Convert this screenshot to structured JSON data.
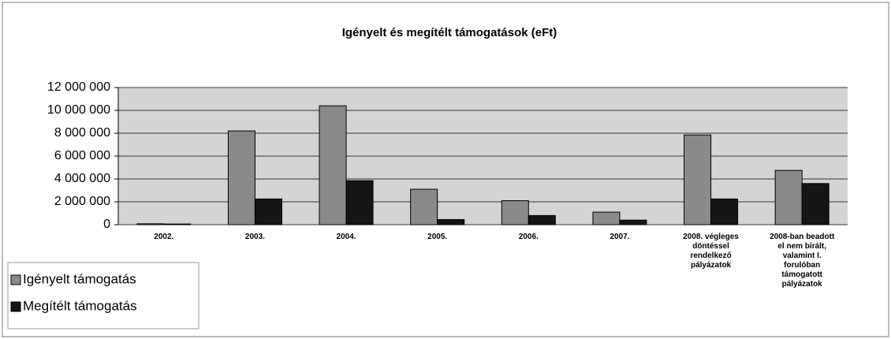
{
  "chart_data": {
    "type": "bar",
    "title": "Igényelt és megítélt támogatások (eFt)",
    "categories": [
      "2002.",
      "2003.",
      "2004.",
      "2005.",
      "2006.",
      "2007.",
      "2008. végleges döntéssel rendelkező pályázatok",
      "2008-ban beadott el nem bírált, valamint I. forulóban támogatott pályázatok"
    ],
    "series": [
      {
        "name": "Igényelt támogatás",
        "color": "#8a8a8a",
        "values": [
          80000,
          8200000,
          10400000,
          3100000,
          2100000,
          1100000,
          7850000,
          4750000
        ]
      },
      {
        "name": "Megítélt támogatás",
        "color": "#151515",
        "values": [
          60000,
          2250000,
          3850000,
          450000,
          800000,
          400000,
          2250000,
          3600000
        ]
      }
    ],
    "ylim": [
      0,
      12000000
    ],
    "yticks": [
      0,
      {
        "value": 2000000,
        "label": "2 000 000"
      },
      {
        "value": 4000000,
        "label": "4 000 000"
      },
      {
        "value": 6000000,
        "label": "6 000 000"
      },
      {
        "value": 8000000,
        "label": "8 000 000"
      },
      {
        "value": 10000000,
        "label": "10 000 000"
      },
      {
        "value": 12000000,
        "label": "12 000 000"
      }
    ],
    "grid": true,
    "legend": "bottom-left"
  }
}
